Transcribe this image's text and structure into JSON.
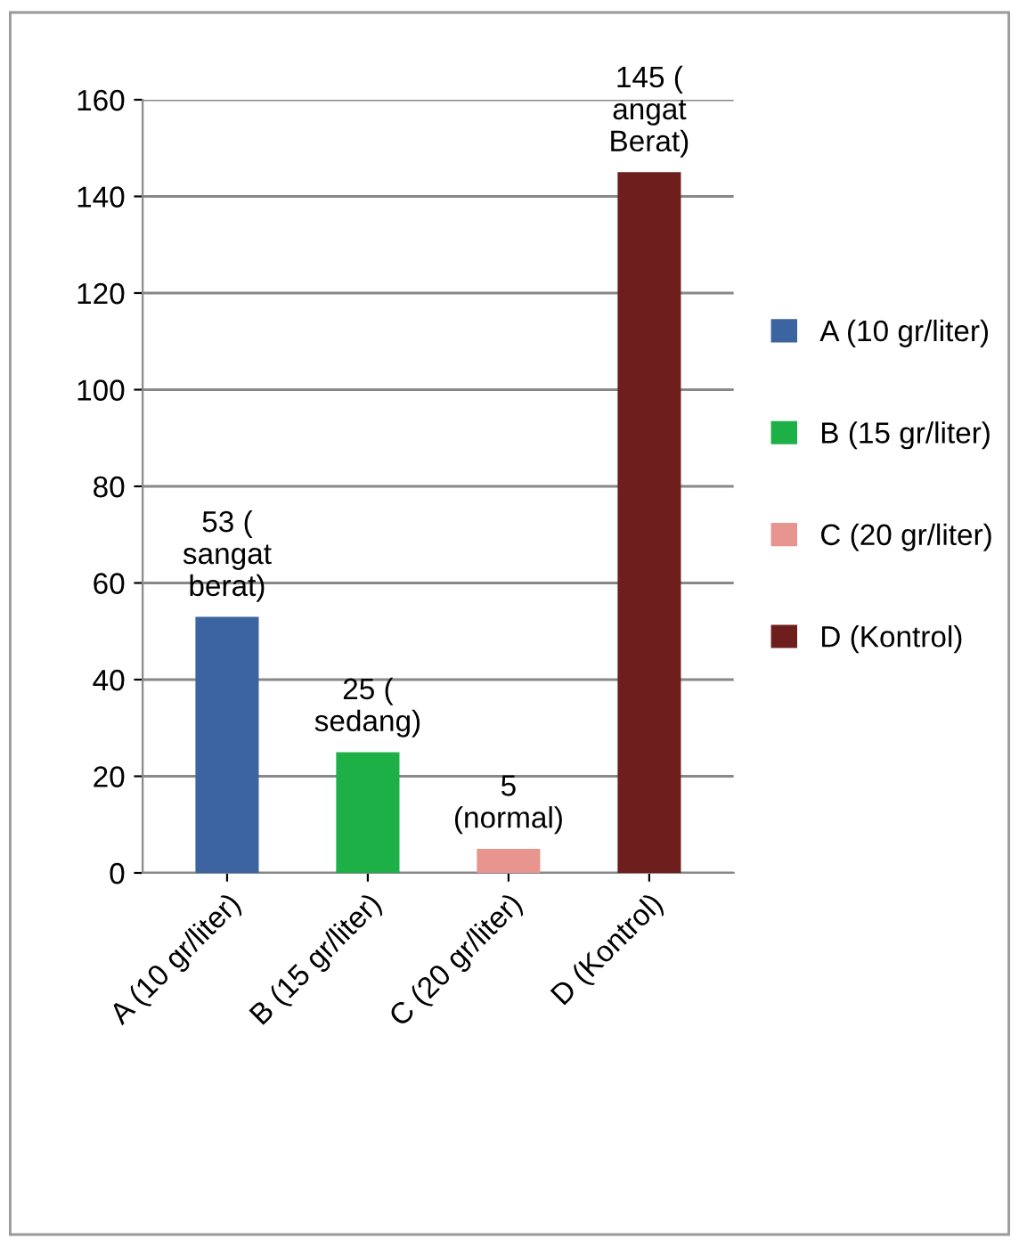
{
  "chart_data": {
    "type": "bar",
    "categories": [
      "A (10 gr/liter)",
      "B (15 gr/liter)",
      "C (20 gr/liter)",
      "D (Kontrol)"
    ],
    "series": [
      {
        "name": "A (10 gr/liter)",
        "color": "#3b64a0",
        "values": [
          53,
          null,
          null,
          null
        ],
        "value_labels": [
          "53 (\nsangat\nberat)",
          null,
          null,
          null
        ]
      },
      {
        "name": "B (15 gr/liter)",
        "color": "#1db046",
        "values": [
          null,
          25,
          null,
          null
        ],
        "value_labels": [
          null,
          "25 (\nsedang)",
          null,
          null
        ]
      },
      {
        "name": "C (20 gr/liter)",
        "color": "#e8958f",
        "values": [
          null,
          null,
          5,
          null
        ],
        "value_labels": [
          null,
          null,
          "5\n(normal)",
          null
        ]
      },
      {
        "name": "D (Kontrol)",
        "color": "#6e1f1d",
        "values": [
          null,
          null,
          null,
          145
        ],
        "value_labels": [
          null,
          null,
          null,
          "145 (\nangat\nBerat)"
        ]
      }
    ],
    "ylim": [
      0,
      160
    ],
    "yticks": [
      0,
      20,
      40,
      60,
      80,
      100,
      120,
      140,
      160
    ],
    "grid": "y",
    "legend": "right"
  }
}
